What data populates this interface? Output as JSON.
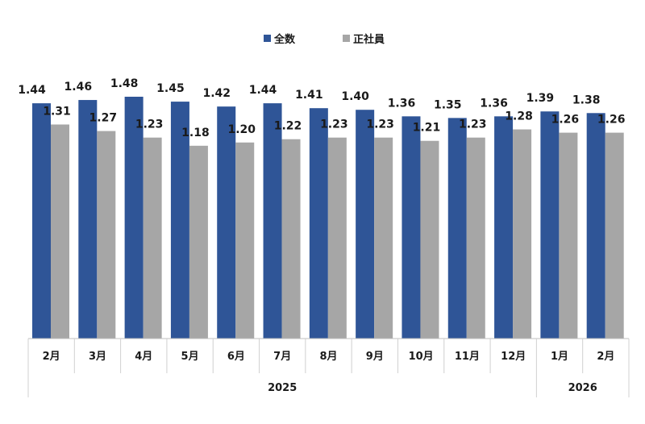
{
  "chart_data": {
    "type": "bar",
    "categories": [
      "2月",
      "3月",
      "4月",
      "5月",
      "6月",
      "7月",
      "8月",
      "9月",
      "10月",
      "11月",
      "12月",
      "1月",
      "2月"
    ],
    "year_groups": [
      {
        "label": "2025",
        "count": 11
      },
      {
        "label": "2026",
        "count": 2
      }
    ],
    "series": [
      {
        "name": "全数",
        "color": "#2F5597",
        "values": [
          1.44,
          1.46,
          1.48,
          1.45,
          1.42,
          1.44,
          1.41,
          1.4,
          1.36,
          1.35,
          1.36,
          1.39,
          1.38
        ],
        "labels": [
          "1.44",
          "1.46",
          "1.48",
          "1.45",
          "1.42",
          "1.44",
          "1.41",
          "1.40",
          "1.36",
          "1.35",
          "1.36",
          "1.39",
          "1.38"
        ]
      },
      {
        "name": "正社員",
        "color": "#A6A6A6",
        "values": [
          1.31,
          1.27,
          1.23,
          1.18,
          1.2,
          1.22,
          1.23,
          1.23,
          1.21,
          1.23,
          1.28,
          1.26,
          1.26
        ],
        "labels": [
          "1.31",
          "1.27",
          "1.23",
          "1.18",
          "1.20",
          "1.22",
          "1.23",
          "1.23",
          "1.21",
          "1.23",
          "1.28",
          "1.26",
          "1.26"
        ]
      }
    ],
    "ylim": [
      0,
      1.6
    ],
    "legend": "top-center",
    "grid": false
  }
}
